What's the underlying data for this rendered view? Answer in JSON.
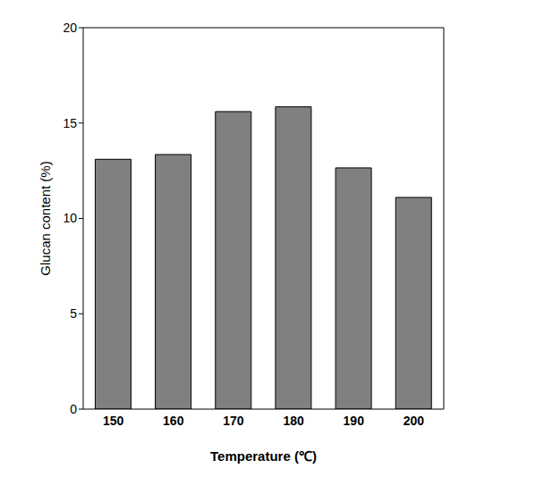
{
  "chart_data": {
    "type": "bar",
    "x_label": "Temperature (℃)",
    "y_label": "Glucan content (%)",
    "categories": [
      "150",
      "160",
      "170",
      "180",
      "190",
      "200"
    ],
    "values": [
      13.1,
      13.35,
      15.6,
      15.85,
      12.65,
      11.1
    ],
    "color": "#808080",
    "ylim": [
      0,
      20
    ],
    "yticks": [
      0,
      5,
      10,
      15,
      20
    ],
    "grid": false
  }
}
